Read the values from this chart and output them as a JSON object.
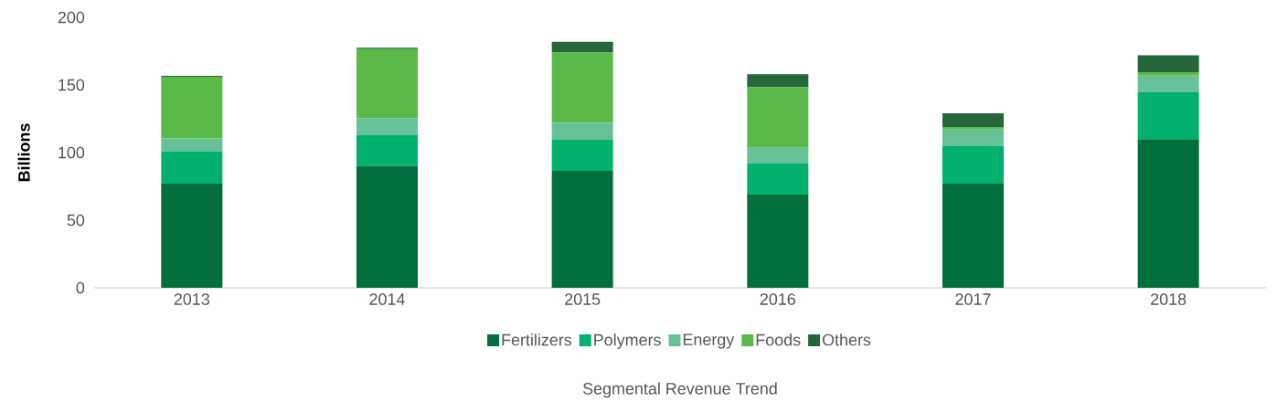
{
  "chart_data": {
    "type": "bar",
    "title": "Segmental Revenue Trend",
    "ylabel": "Billions",
    "categories": [
      "2013",
      "2014",
      "2015",
      "2016",
      "2017",
      "2018"
    ],
    "stacked": true,
    "legend": "bottom",
    "ylim": [
      0,
      200
    ],
    "yticks": [
      0,
      50,
      100,
      150,
      200
    ],
    "series": [
      {
        "name": "Fertilizers",
        "color": "#006f3c",
        "values": [
          77,
          90,
          86.5,
          69,
          77,
          109.5
        ]
      },
      {
        "name": "Polymers",
        "color": "#00b06c",
        "values": [
          24,
          23,
          23,
          23,
          28,
          35.5
        ]
      },
      {
        "name": "Energy",
        "color": "#66c295",
        "values": [
          9.5,
          12.5,
          12.5,
          11.5,
          12,
          12
        ]
      },
      {
        "name": "Foods",
        "color": "#5bb948",
        "values": [
          45.5,
          51,
          52,
          45,
          2,
          2.5
        ]
      },
      {
        "name": "Others",
        "color": "#25673a",
        "values": [
          0.7,
          1,
          8,
          9.5,
          10,
          12.5
        ]
      }
    ]
  }
}
